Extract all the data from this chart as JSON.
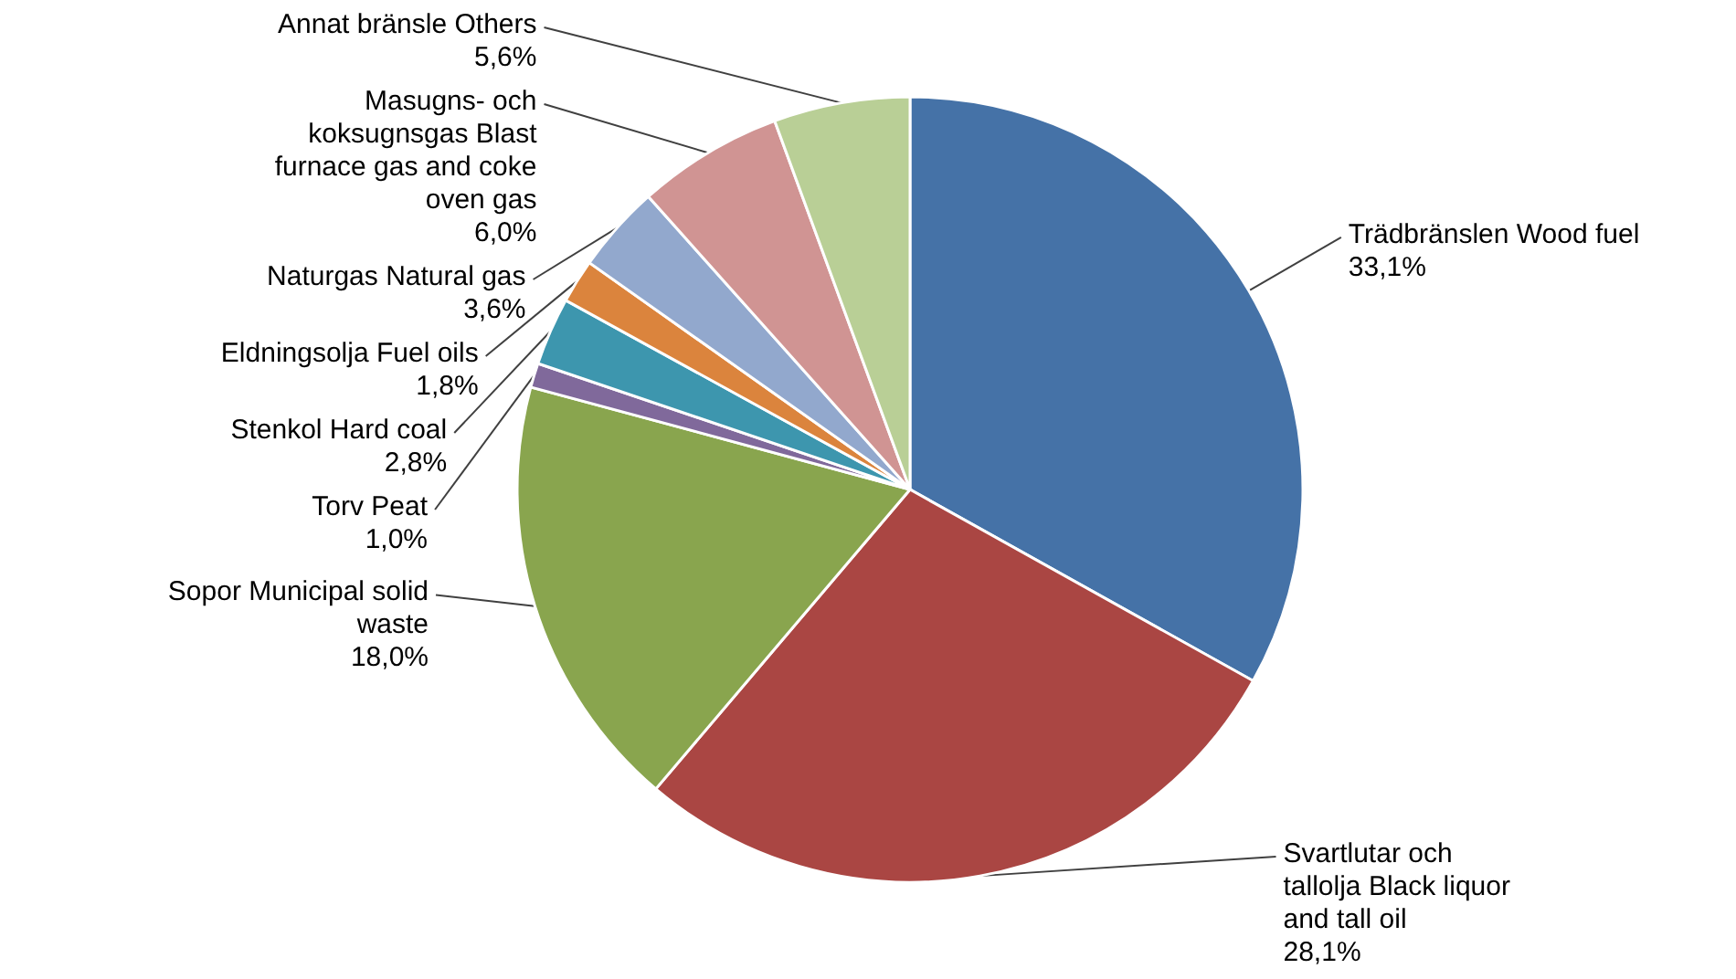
{
  "chart_data": {
    "type": "pie",
    "categories": [
      "Trädbränslen Wood fuel",
      "Svartlutar och tallolja Black liquor and tall oil",
      "Sopor Municipal solid waste",
      "Torv Peat",
      "Stenkol Hard coal",
      "Eldningsolja Fuel oils",
      "Naturgas Natural gas",
      "Masugns- och koksugnsgas Blast furnace gas and coke oven gas",
      "Annat bränsle Others"
    ],
    "values": [
      33.1,
      28.1,
      18.0,
      1.0,
      2.8,
      1.8,
      3.6,
      6.0,
      5.6
    ],
    "value_labels": [
      "33,1%",
      "28,1%",
      "18,0%",
      "1,0%",
      "2,8%",
      "1,8%",
      "3,6%",
      "6,0%",
      "5,6%"
    ],
    "colors": [
      "#4572a7",
      "#aa4643",
      "#89a54e",
      "#80699b",
      "#3d96ae",
      "#db843d",
      "#92a8cd",
      "#d09493",
      "#b9cf96"
    ]
  }
}
